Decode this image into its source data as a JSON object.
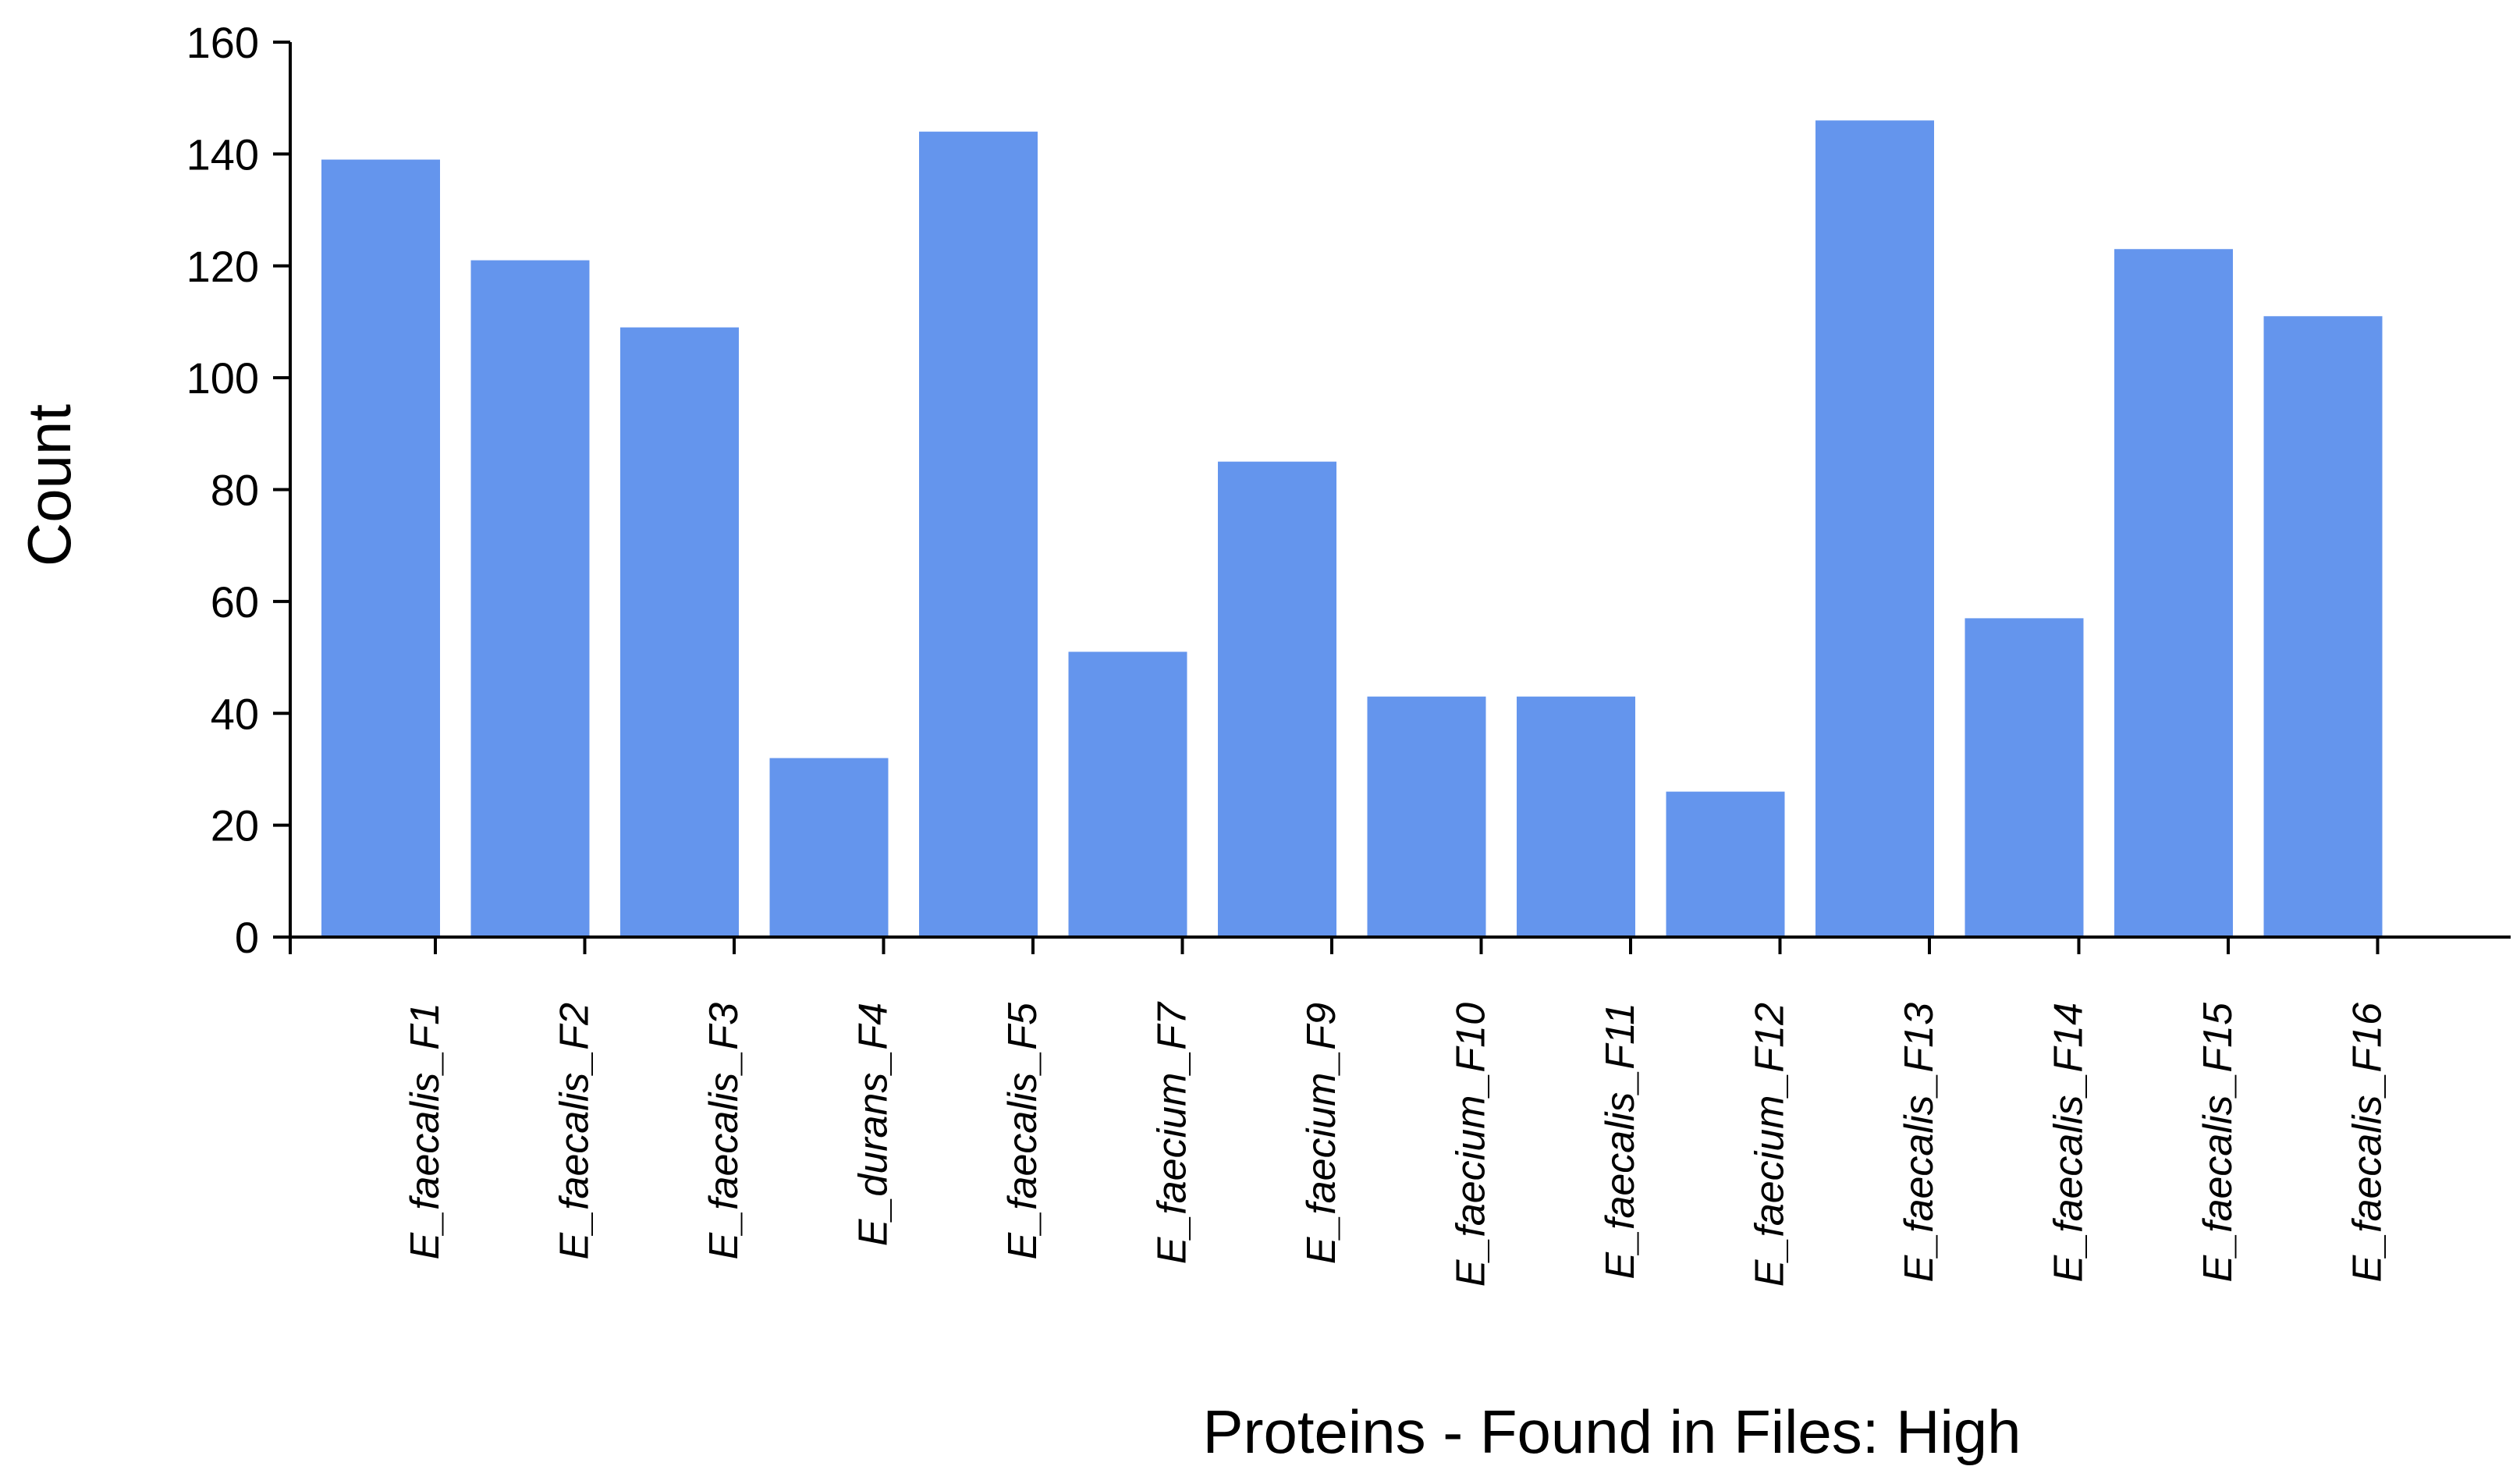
{
  "chart_data": {
    "type": "bar",
    "categories": [
      "E_faecalis_F1",
      "E_faecalis_F2",
      "E_faecalis_F3",
      "E_durans_F4",
      "E_faecalis_F5",
      "E_faecium_F7",
      "E_faecium_F9",
      "E_faecium_F10",
      "E_faecalis_F11",
      "E_faecium_F12",
      "E_faecalis_F13",
      "E_faecalis_F14",
      "E_faecalis_F15",
      "E_faecalis_F16"
    ],
    "values": [
      139,
      121,
      109,
      32,
      144,
      51,
      85,
      43,
      43,
      26,
      146,
      57,
      123,
      111
    ],
    "title": "",
    "xlabel": "Proteins - Found in Files: High",
    "ylabel": "Count",
    "ylim": [
      0,
      160
    ],
    "yticks": [
      "0",
      "20",
      "40",
      "60",
      "80",
      "100",
      "120",
      "140",
      "160"
    ],
    "bar_color": "#6495ED",
    "grid": false,
    "legend": "none"
  }
}
